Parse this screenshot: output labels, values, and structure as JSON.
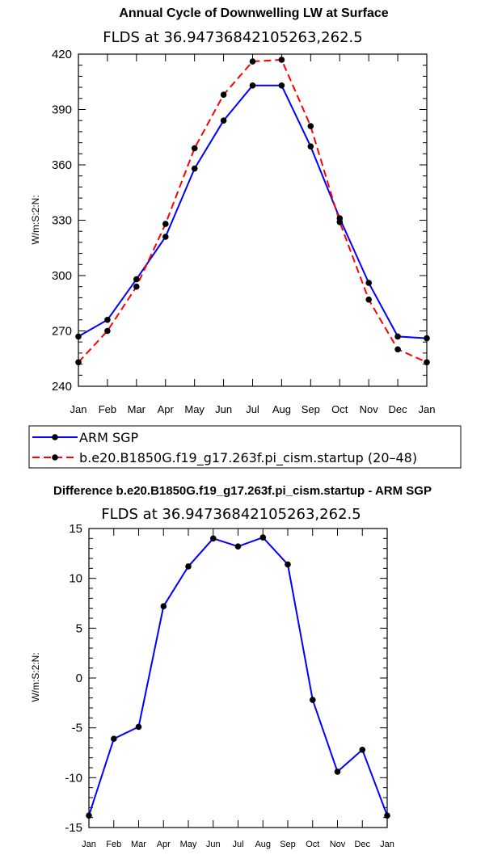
{
  "chart_data": [
    {
      "type": "line",
      "title": "Annual Cycle of Downwelling LW at Surface",
      "subtitle": "FLDS at 36.94736842105263,262.5",
      "ylabel": "W/m:S:2:N:",
      "xlabel": "",
      "categories": [
        "Jan",
        "Feb",
        "Mar",
        "Apr",
        "May",
        "Jun",
        "Jul",
        "Aug",
        "Sep",
        "Oct",
        "Nov",
        "Dec",
        "Jan"
      ],
      "ylim": [
        240,
        420
      ],
      "yticks": [
        240,
        270,
        300,
        330,
        360,
        390,
        420
      ],
      "series": [
        {
          "name": "ARM SGP",
          "color": "#0000ff",
          "dash": "solid",
          "values": [
            267,
            276,
            298,
            321,
            358,
            384,
            403,
            403,
            370,
            331,
            296,
            267,
            266
          ]
        },
        {
          "name": "b.e20.B1850G.f19_g17.263f.pi_cism.startup (20–48)",
          "color": "#ff0000",
          "dash": "dashed",
          "values": [
            253,
            270,
            294,
            328,
            369,
            398,
            416,
            417,
            381,
            329,
            287,
            260,
            253
          ]
        }
      ],
      "legend_position": "below"
    },
    {
      "type": "line",
      "title": "Difference b.e20.B1850G.f19_g17.263f.pi_cism.startup - ARM SGP",
      "subtitle": "FLDS at 36.94736842105263,262.5",
      "ylabel": "W/m:S:2:N:",
      "xlabel": "",
      "categories": [
        "Jan",
        "Feb",
        "Mar",
        "Apr",
        "May",
        "Jun",
        "Jul",
        "Aug",
        "Sep",
        "Oct",
        "Nov",
        "Dec",
        "Jan"
      ],
      "ylim": [
        -15,
        15
      ],
      "yticks": [
        -15,
        -10,
        -5,
        0,
        5,
        10,
        15
      ],
      "series": [
        {
          "name": "Difference",
          "color": "#0000ff",
          "dash": "solid",
          "values": [
            -13.8,
            -6.1,
            -4.9,
            7.2,
            11.2,
            14.0,
            13.2,
            14.1,
            11.4,
            -2.2,
            -9.4,
            -7.2,
            -13.8
          ]
        }
      ]
    }
  ]
}
